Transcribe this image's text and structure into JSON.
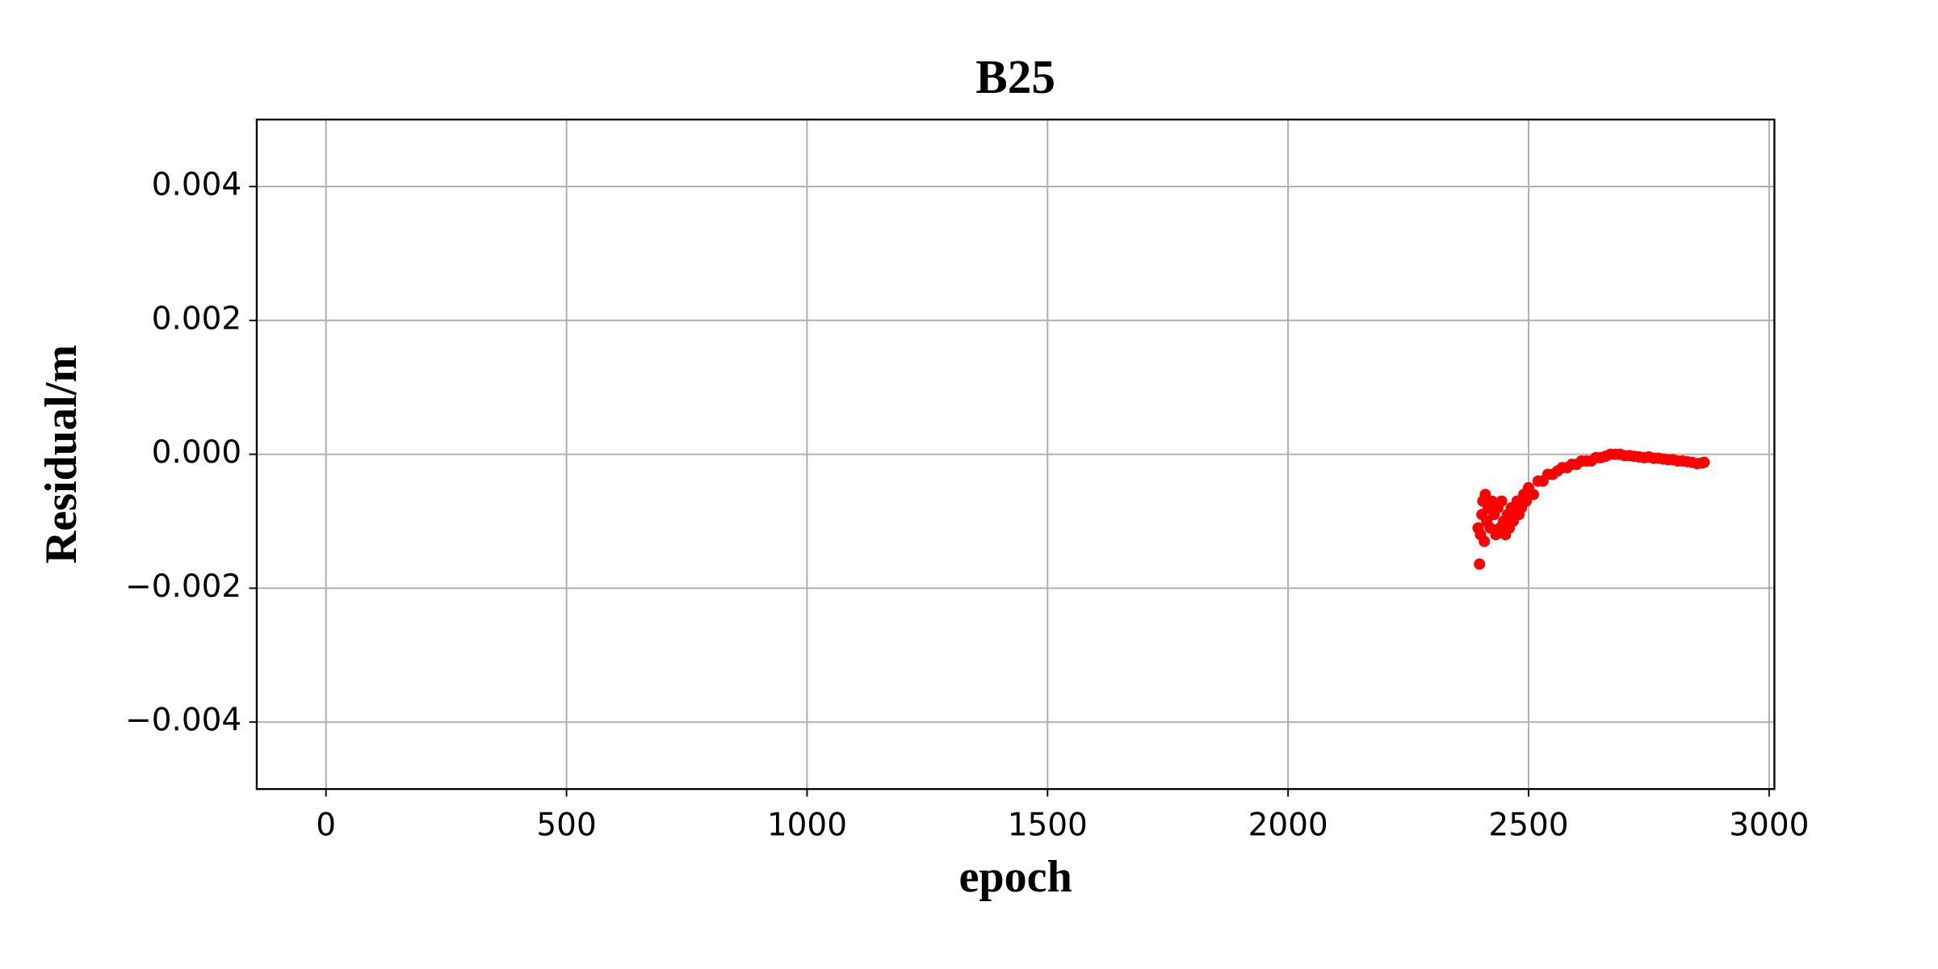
{
  "chart_data": {
    "type": "scatter",
    "title": "B25",
    "x_label": "epoch",
    "y_label": "Residual/m",
    "color": "#ff0000",
    "grid": true,
    "xlim": [
      -144,
      3011
    ],
    "ylim": [
      -0.005,
      0.005
    ],
    "xticks": [
      0,
      500,
      1000,
      1500,
      2000,
      2500,
      3000
    ],
    "yticks": [
      {
        "value": -0.004,
        "label": "−0.004"
      },
      {
        "value": -0.002,
        "label": "−0.002"
      },
      {
        "value": 0,
        "label": "0.000"
      },
      0.002,
      0.004
    ],
    "x": [
      2395,
      2398,
      2400,
      2403,
      2405,
      2408,
      2410,
      2413,
      2416,
      2420,
      2424,
      2428,
      2432,
      2436,
      2440,
      2444,
      2448,
      2452,
      2456,
      2460,
      2464,
      2468,
      2472,
      2476,
      2480,
      2485,
      2490,
      2495,
      2500,
      2510,
      2520,
      2530,
      2540,
      2550,
      2560,
      2570,
      2580,
      2590,
      2600,
      2610,
      2620,
      2630,
      2640,
      2650,
      2660,
      2670,
      2680,
      2690,
      2700,
      2710,
      2720,
      2730,
      2740,
      2750,
      2760,
      2770,
      2780,
      2790,
      2800,
      2810,
      2820,
      2830,
      2840,
      2850,
      2860,
      2865
    ],
    "values": [
      -0.0011,
      -0.00164,
      -0.0012,
      -0.0009,
      -0.0007,
      -0.0013,
      -0.0006,
      -0.001,
      -0.0008,
      -0.0011,
      -0.0007,
      -0.0009,
      -0.0012,
      -0.0008,
      -0.0011,
      -0.0007,
      -0.001,
      -0.0012,
      -0.0009,
      -0.0011,
      -0.0008,
      -0.001,
      -0.0009,
      -0.0007,
      -0.0009,
      -0.0008,
      -0.0006,
      -0.0007,
      -0.0005,
      -0.0006,
      -0.0004,
      -0.0004,
      -0.0003,
      -0.0003,
      -0.00025,
      -0.0002,
      -0.0002,
      -0.00015,
      -0.00015,
      -0.0001,
      -0.0001,
      -0.0001,
      -5e-05,
      -5e-05,
      -3e-05,
      0,
      0,
      0,
      -2e-05,
      -2e-05,
      -3e-05,
      -4e-05,
      -5e-05,
      -4e-05,
      -6e-05,
      -6e-05,
      -7e-05,
      -8e-05,
      -8e-05,
      -0.0001,
      -0.0001,
      -0.00011,
      -0.00012,
      -0.00014,
      -0.00013,
      -0.00012
    ]
  }
}
